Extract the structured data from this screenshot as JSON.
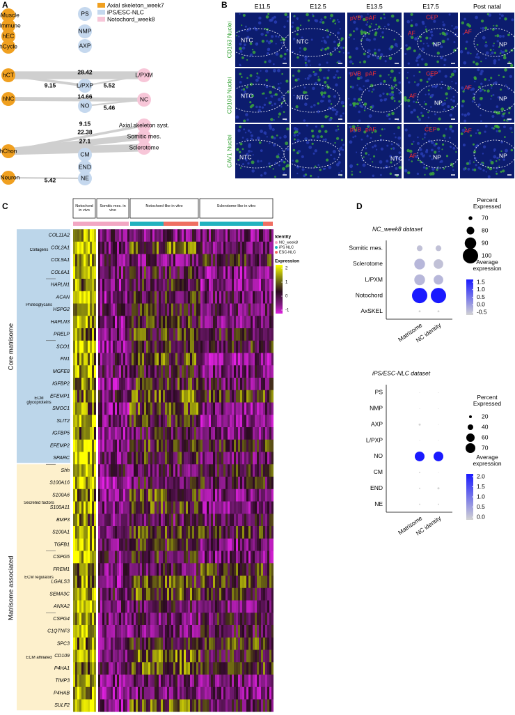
{
  "panel_a": {
    "label": "A",
    "legend": [
      "Axial skeleton_week7",
      "iPS/ESC-NLC",
      "Notochord_week8"
    ],
    "nodes_week7": [
      "hMuscle",
      "hImmune",
      "hEC",
      "hCycle",
      "hCT",
      "hNC",
      "hChon",
      "hNeuron"
    ],
    "nodes_nlc": [
      "PS",
      "NMP",
      "AXP",
      "L/PXP",
      "NO",
      "CM",
      "END",
      "NE"
    ],
    "nodes_week8": [
      "L/PXM",
      "NC",
      "Axial skeleton syst.",
      "Somitic mes.",
      "Sclerotome"
    ],
    "edge_labels": [
      28.42,
      9.15,
      5.52,
      14.66,
      5.46,
      9.15,
      22.38,
      27.1,
      5.42
    ]
  },
  "panel_b": {
    "label": "B",
    "columns": [
      "E11.5",
      "E12.5",
      "E13.5",
      "E17.5",
      "Post natal"
    ],
    "rows": [
      "CD163 Nuclei",
      "CD109 Nuclei",
      "CAV1 Nuclei"
    ],
    "region_labels": [
      [
        [
          "NTC"
        ],
        [
          "NTC"
        ],
        [
          "pVB",
          "pAF"
        ],
        [
          "AF",
          "CEP",
          "NP"
        ],
        [
          "AF",
          "NP"
        ]
      ],
      [
        [
          "NTC"
        ],
        [
          "NTC"
        ],
        [
          "pVB",
          "pAF"
        ],
        [
          "AF",
          "CEP",
          "NP"
        ],
        [
          "AF",
          "NP"
        ]
      ],
      [
        [
          "NTC"
        ],
        [],
        [
          "pVB",
          "pAF",
          "NTC"
        ],
        [
          "AF",
          "CEP",
          "NP"
        ],
        [
          "AF",
          "NP"
        ]
      ]
    ]
  },
  "panel_c": {
    "label": "C",
    "column_groups": [
      "Notochord in vivo",
      "Somitic mes. in vivo",
      "Notochord-like in vitro",
      "Sclerotome-like in vitro"
    ],
    "categories": [
      "Core matrisome",
      "Matrisome associated"
    ],
    "subcategories": [
      "Collagens",
      "Proteoglycans",
      "ECM glycoproteins",
      "Secreted factors",
      "ECM regulators",
      "ECM affiliated"
    ],
    "genes": [
      "COL11A2",
      "COL2A1",
      "COL9A1",
      "COL6A1",
      "HAPLN1",
      "ACAN",
      "HSPG2",
      "HAPLN3",
      "PRELP",
      "SCO1",
      "FN1",
      "MGFE8",
      "IGFBP2",
      "EFEMP1",
      "SMOC1",
      "SLIT2",
      "IGFBP5",
      "EFEMP2",
      "SPARC",
      "Shh",
      "S100A16",
      "S100A6",
      "S100A11",
      "BMP3",
      "S100A1",
      "TGFB1",
      "CSPG5",
      "FREM1",
      "LGALS3",
      "SEMA3C",
      "ANXA2",
      "CSPG4",
      "C1QTNF3",
      "SPC3",
      "CD109",
      "P4HA1",
      "TIMP3",
      "P4HAB",
      "SULF2"
    ],
    "identity_title": "Identity",
    "identities": [
      {
        "name": "NC_week8",
        "color": "#f2a7c3"
      },
      {
        "name": "iPS NLC",
        "color": "#21b3bf"
      },
      {
        "name": "ESC-NLC",
        "color": "#ef6f62"
      }
    ],
    "expression_title": "Expression",
    "expression_ticks": [
      2,
      1,
      0,
      -1
    ]
  },
  "panel_d": {
    "label": "D",
    "plots": [
      {
        "title": "NC_week8 dataset",
        "rows": [
          "Somitic mes.",
          "Sclerotome",
          "L/PXM",
          "Notochord",
          "AxSKEL"
        ],
        "columns": [
          "Matrisome",
          "NC identity"
        ],
        "pct": [
          [
            75,
            75
          ],
          [
            88,
            85
          ],
          [
            88,
            85
          ],
          [
            100,
            100
          ],
          [
            65,
            65
          ]
        ],
        "avg": [
          [
            -0.3,
            -0.3
          ],
          [
            -0.2,
            -0.3
          ],
          [
            -0.2,
            -0.2
          ],
          [
            1.5,
            1.5
          ],
          [
            -0.5,
            -0.5
          ]
        ],
        "pct_title": "Percent Expressed",
        "pct_ticks": [
          70,
          80,
          90,
          100
        ],
        "avg_title": "Average expression",
        "avg_ticks": [
          1.5,
          {
            "value": 1,
            "label": "1.0"
          },
          0.5,
          {
            "value": 0,
            "label": "0.0"
          },
          -0.5
        ]
      },
      {
        "title": "iPS/ESC-NLC dataset",
        "rows": [
          "PS",
          "NMP",
          "AXP",
          "L/PXP",
          "NO",
          "CM",
          "END",
          "NE"
        ],
        "columns": [
          "Matrisome",
          "NC identity"
        ],
        "pct": [
          [
            5,
            5
          ],
          [
            5,
            5
          ],
          [
            15,
            5
          ],
          [
            5,
            5
          ],
          [
            70,
            70
          ],
          [
            10,
            5
          ],
          [
            10,
            15
          ],
          [
            10,
            10
          ]
        ],
        "avg": [
          [
            0,
            0
          ],
          [
            0,
            0
          ],
          [
            0,
            0
          ],
          [
            0,
            0
          ],
          [
            2,
            2
          ],
          [
            0,
            0
          ],
          [
            0,
            0
          ],
          [
            0,
            0
          ]
        ],
        "pct_title": "Percent Expressed",
        "pct_ticks": [
          20,
          40,
          60,
          70
        ],
        "avg_title": "Average expression",
        "avg_ticks": [
          {
            "value": 2,
            "label": "2.0"
          },
          1.5,
          {
            "value": 1,
            "label": "1.0"
          },
          0.5,
          {
            "value": 0,
            "label": "0.0"
          }
        ]
      }
    ]
  }
}
